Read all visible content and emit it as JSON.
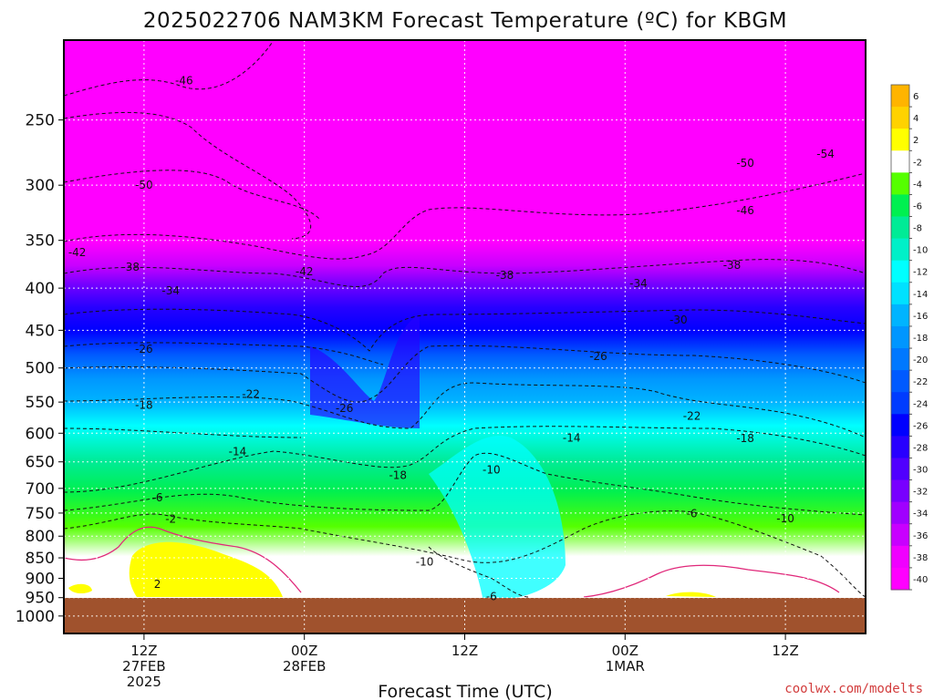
{
  "chart_data": {
    "type": "heatmap",
    "title": "2025022706 NAM3KM Forecast Temperature (ºC) for KBGM",
    "xlabel": "Forecast Time (UTC)",
    "ylabel": "",
    "y_axis": {
      "unit": "hPa",
      "scale": "log-pressure",
      "ticks": [
        250,
        300,
        350,
        400,
        450,
        500,
        550,
        600,
        650,
        700,
        750,
        800,
        850,
        900,
        950,
        1000
      ],
      "tick_labels": [
        "250",
        "300",
        "350",
        "400",
        "450",
        "500",
        "550",
        "600",
        "650",
        "700",
        "750",
        "800",
        "850",
        "900",
        "950",
        "1000"
      ],
      "ylim": [
        1000,
        200
      ]
    },
    "x_axis": {
      "unit": "UTC time",
      "xlim": [
        "27FEB 06Z",
        "1MAR 18Z"
      ],
      "ticks": [
        {
          "time": "27FEB 12Z",
          "lines": [
            "12Z",
            "27FEB",
            "2025"
          ]
        },
        {
          "time": "28FEB 00Z",
          "lines": [
            "00Z",
            "28FEB"
          ]
        },
        {
          "time": "28FEB 12Z",
          "lines": [
            "12Z"
          ]
        },
        {
          "time": "1MAR 00Z",
          "lines": [
            "00Z",
            "1MAR"
          ]
        },
        {
          "time": "1MAR 12Z",
          "lines": [
            "12Z"
          ]
        }
      ]
    },
    "colorbar": {
      "labels": [
        "6",
        "4",
        "2",
        "-2",
        "-4",
        "-6",
        "-8",
        "-10",
        "-12",
        "-14",
        "-16",
        "-18",
        "-20",
        "-22",
        "-24",
        "-26",
        "-28",
        "-30",
        "-32",
        "-34",
        "-36",
        "-38",
        "-40"
      ],
      "colors": [
        "#ffb400",
        "#ffd200",
        "#ffff00",
        "#ffffff",
        "#55ff00",
        "#00f050",
        "#00eb96",
        "#00f0c8",
        "#00ffff",
        "#00e1ff",
        "#00b4ff",
        "#0096ff",
        "#0078ff",
        "#005aff",
        "#003cff",
        "#0000ff",
        "#2800ff",
        "#5000ff",
        "#7800ff",
        "#a000ff",
        "#c800ff",
        "#f000ff",
        "#ff00ff"
      ]
    },
    "contour_labels": [
      {
        "text": "-46",
        "time": "27FEB 15Z",
        "pressure": 224
      },
      {
        "text": "-54",
        "time": "1MAR 15Z",
        "pressure": 275
      },
      {
        "text": "-50",
        "time": "27FEB 12Z",
        "pressure": 300
      },
      {
        "text": "-50",
        "time": "1MAR 09Z",
        "pressure": 282
      },
      {
        "text": "-46",
        "time": "1MAR 09Z",
        "pressure": 322
      },
      {
        "text": "-42",
        "time": "27FEB 07Z",
        "pressure": 362
      },
      {
        "text": "-42",
        "time": "28FEB 00Z",
        "pressure": 382
      },
      {
        "text": "-38",
        "time": "27FEB 11Z",
        "pressure": 377
      },
      {
        "text": "-38",
        "time": "28FEB 15Z",
        "pressure": 386
      },
      {
        "text": "-38",
        "time": "1MAR 08Z",
        "pressure": 375
      },
      {
        "text": "-34",
        "time": "27FEB 14Z",
        "pressure": 403
      },
      {
        "text": "-34",
        "time": "1MAR 01Z",
        "pressure": 395
      },
      {
        "text": "-30",
        "time": "1MAR 04Z",
        "pressure": 437
      },
      {
        "text": "-26",
        "time": "27FEB 12Z",
        "pressure": 474
      },
      {
        "text": "-26",
        "time": "28FEB 22Z",
        "pressure": 484
      },
      {
        "text": "-26",
        "time": "28FEB 03Z",
        "pressure": 560
      },
      {
        "text": "-22",
        "time": "27FEB 20Z",
        "pressure": 538
      },
      {
        "text": "-22",
        "time": "1MAR 05Z",
        "pressure": 572
      },
      {
        "text": "-18",
        "time": "27FEB 12Z",
        "pressure": 555
      },
      {
        "text": "-18",
        "time": "1MAR 09Z",
        "pressure": 609
      },
      {
        "text": "-18",
        "time": "28FEB 07Z",
        "pressure": 675
      },
      {
        "text": "-14",
        "time": "27FEB 19Z",
        "pressure": 632
      },
      {
        "text": "-14",
        "time": "28FEB 20Z",
        "pressure": 608
      },
      {
        "text": "-10",
        "time": "28FEB 14Z",
        "pressure": 665
      },
      {
        "text": "-10",
        "time": "1MAR 12Z",
        "pressure": 762
      },
      {
        "text": "-10",
        "time": "28FEB 09Z",
        "pressure": 860
      },
      {
        "text": "-6",
        "time": "27FEB 13Z",
        "pressure": 718
      },
      {
        "text": "-6",
        "time": "1MAR 05Z",
        "pressure": 751
      },
      {
        "text": "-6",
        "time": "28FEB 14Z",
        "pressure": 947
      },
      {
        "text": "-2",
        "time": "27FEB 14Z",
        "pressure": 763
      },
      {
        "text": "2",
        "time": "27FEB 13Z",
        "pressure": 915
      }
    ]
  },
  "credit": "coolwx.com/modelts",
  "colors": {
    "ground": "#a0522d",
    "contour_freezing": "#e0287a",
    "contour_dashed": "#111111"
  }
}
